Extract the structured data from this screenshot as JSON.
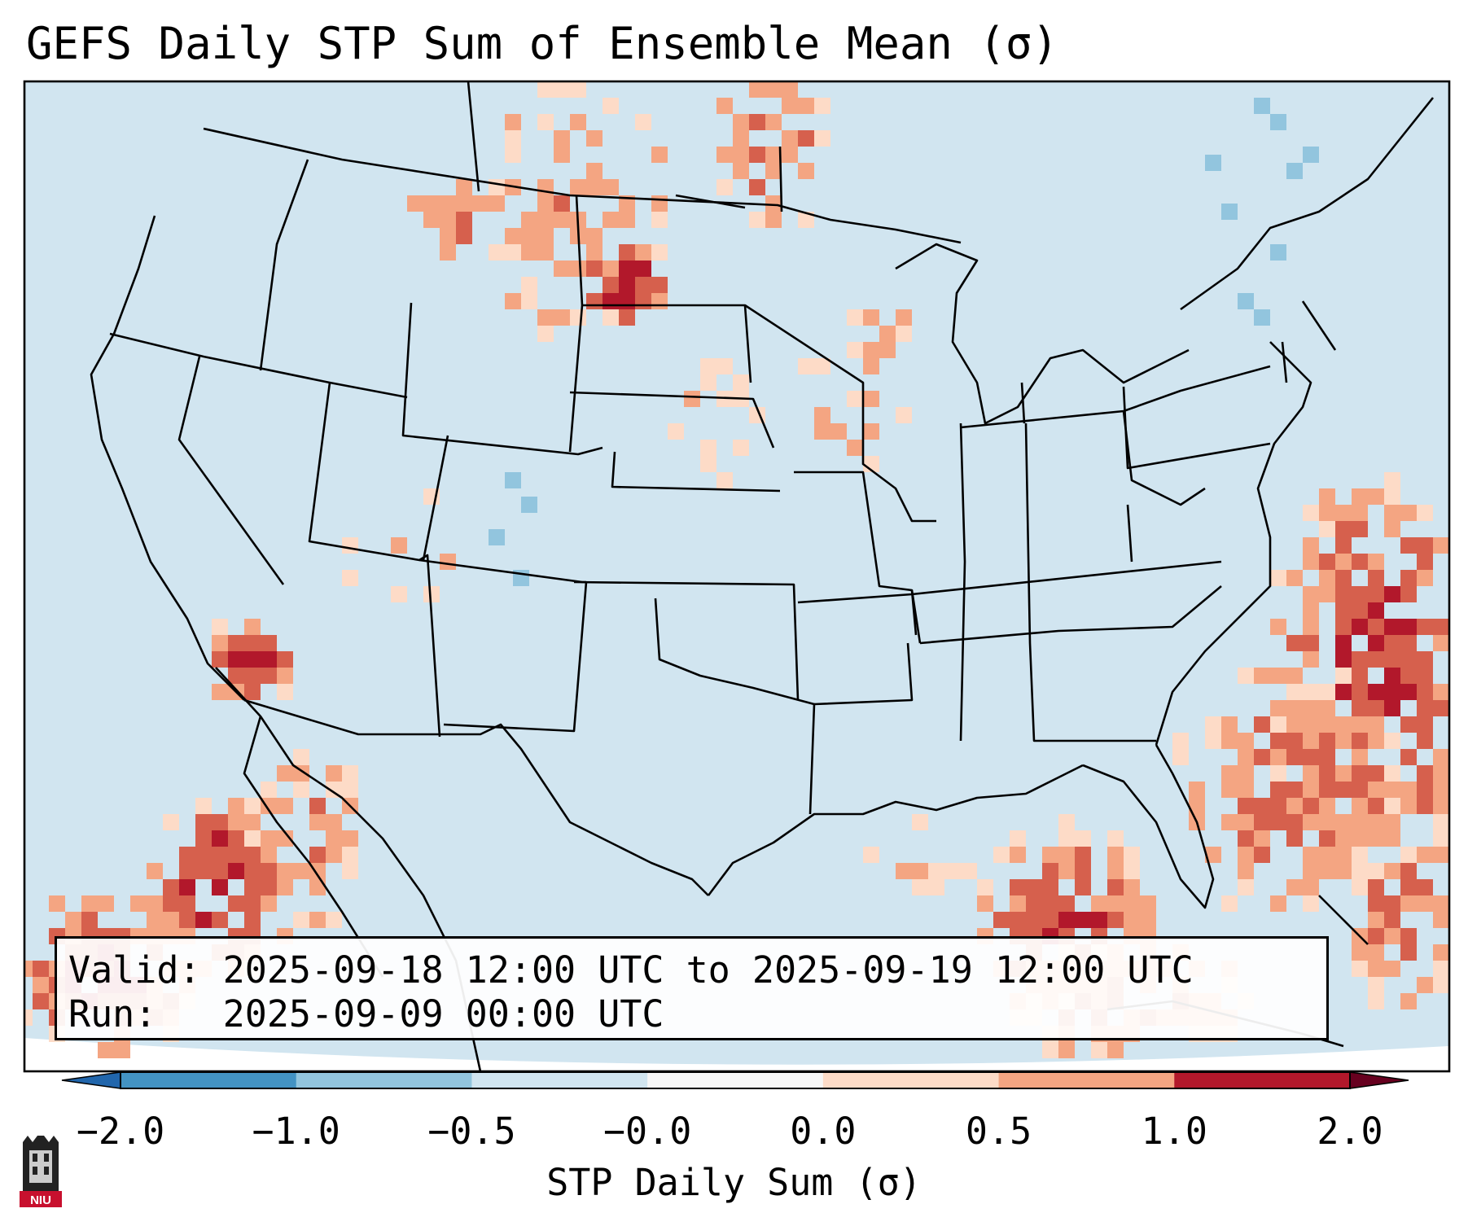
{
  "title": "GEFS Daily STP Sum of Ensemble Mean (σ)",
  "info": {
    "valid_line": "Valid: 2025-09-18 12:00 UTC to 2025-09-19 12:00 UTC",
    "run_line": "Run:   2025-09-09 00:00 UTC"
  },
  "colorbar": {
    "label": "STP Daily Sum (σ)",
    "ticks": [
      "−2.0",
      "−1.0",
      "−0.5",
      "−0.0",
      "0.0",
      "0.5",
      "1.0",
      "2.0"
    ],
    "colors": [
      "#4393c3",
      "#92c5de",
      "#d1e5f0",
      "#f7f7f7",
      "#fddbc7",
      "#f4a582",
      "#d6604d",
      "#b2182b"
    ],
    "extend": "both"
  },
  "map": {
    "projection": "Lambert conformal, CONUS",
    "background_color": "#d1e5f0",
    "logo_text": "NIU"
  }
}
